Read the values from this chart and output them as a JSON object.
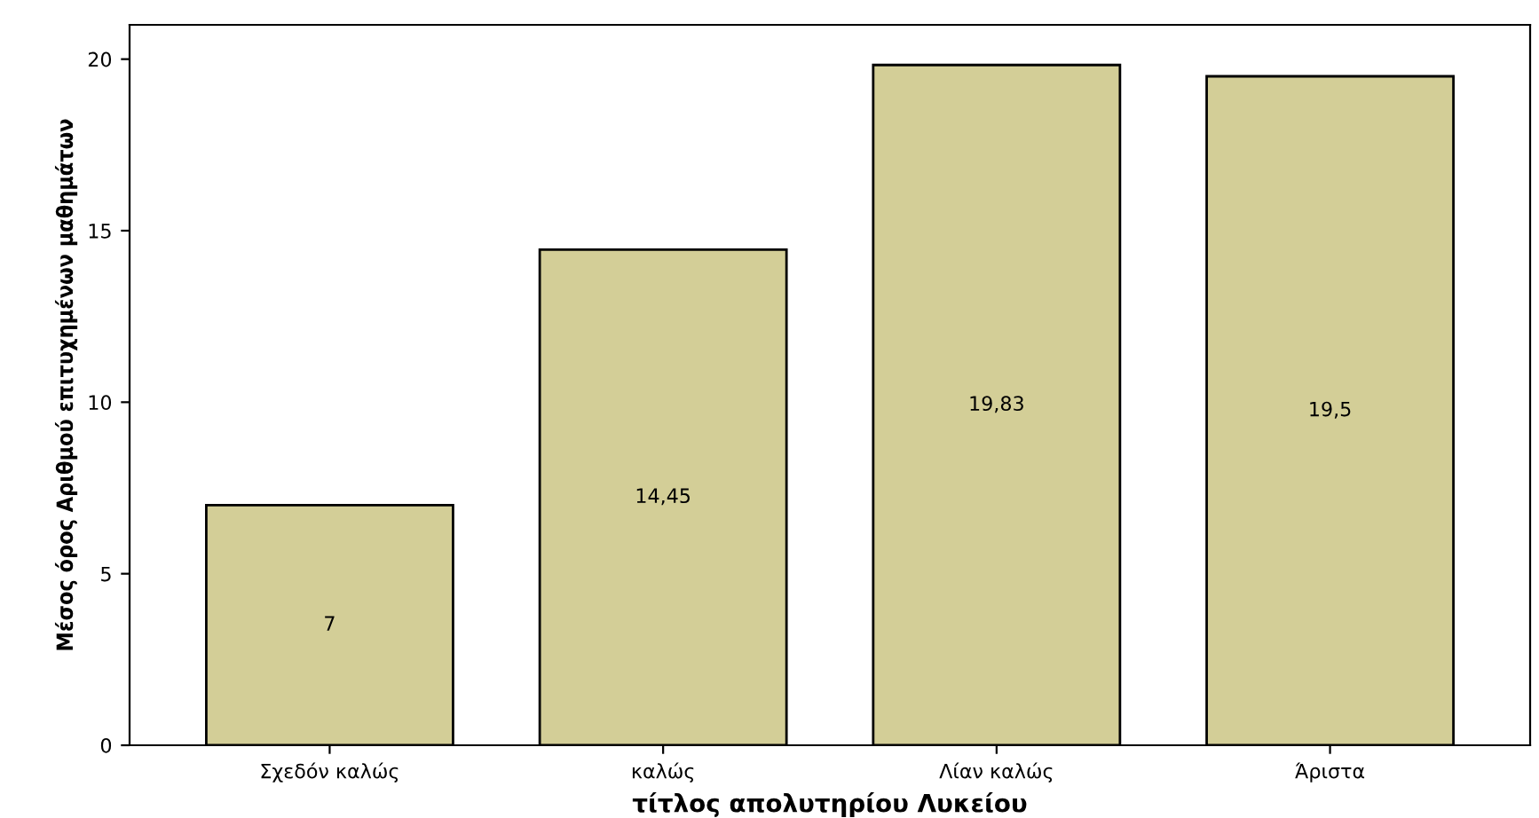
{
  "chart_data": {
    "type": "bar",
    "xlabel": "τίτλος απολυτηρίου Λυκείου",
    "ylabel": "Μέσος όρος Αριθμού επιτυχημένων μαθημάτων",
    "categories": [
      "Σχεδόν καλώς",
      "καλώς",
      "Λίαν καλώς",
      "Άριστα"
    ],
    "values": [
      7,
      14.45,
      19.83,
      19.5
    ],
    "value_labels": [
      "7",
      "14,45",
      "19,83",
      "19,5"
    ],
    "color": "#d3ce97",
    "ylim": [
      0,
      21
    ],
    "yticks": [
      0,
      5,
      10,
      15,
      20
    ],
    "grid": false
  }
}
